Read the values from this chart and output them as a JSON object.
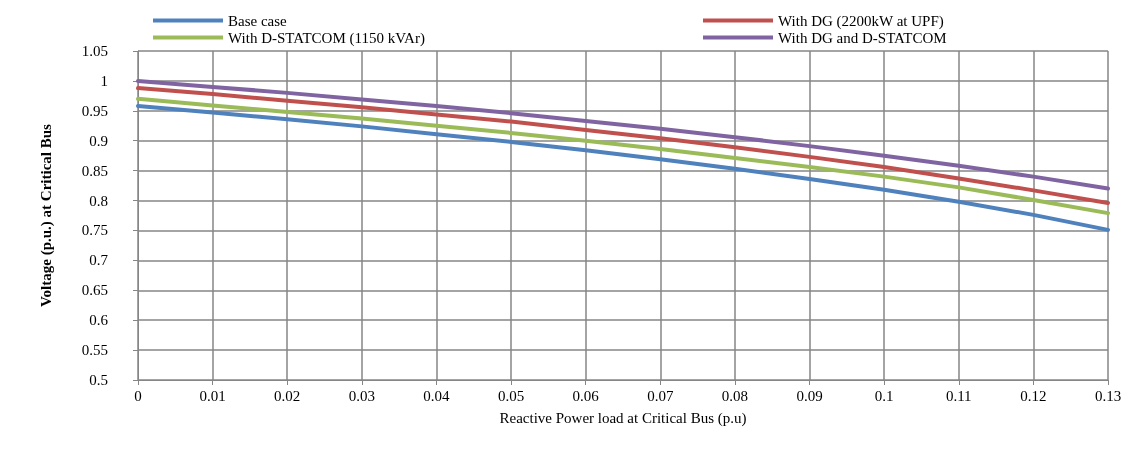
{
  "chart_data": {
    "type": "line",
    "xlabel": "Reactive Power load at Critical Bus (p.u)",
    "ylabel": "Voltage (p.u.) at Critical Bus",
    "x": [
      0,
      0.01,
      0.02,
      0.03,
      0.04,
      0.05,
      0.06,
      0.07,
      0.08,
      0.09,
      0.1,
      0.11,
      0.12,
      0.13
    ],
    "series": [
      {
        "name": "Base case",
        "color": "#4f81bd",
        "values": [
          0.958,
          0.947,
          0.936,
          0.924,
          0.911,
          0.898,
          0.884,
          0.869,
          0.853,
          0.836,
          0.818,
          0.798,
          0.776,
          0.751
        ]
      },
      {
        "name": "With DG (2200kW at UPF)",
        "color": "#c0504d",
        "values": [
          0.988,
          0.978,
          0.967,
          0.956,
          0.944,
          0.932,
          0.918,
          0.904,
          0.889,
          0.873,
          0.856,
          0.837,
          0.817,
          0.796
        ]
      },
      {
        "name": "With D-STATCOM (1150 kVAr)",
        "color": "#9bbb59",
        "values": [
          0.97,
          0.959,
          0.948,
          0.937,
          0.925,
          0.913,
          0.9,
          0.886,
          0.871,
          0.856,
          0.84,
          0.822,
          0.801,
          0.779
        ]
      },
      {
        "name": "With DG and D-STATCOM",
        "color": "#8064a2",
        "values": [
          1.0,
          0.99,
          0.98,
          0.969,
          0.958,
          0.946,
          0.933,
          0.92,
          0.906,
          0.891,
          0.875,
          0.858,
          0.84,
          0.82
        ]
      }
    ],
    "xlim": [
      0,
      0.13
    ],
    "xticks": [
      0,
      0.01,
      0.02,
      0.03,
      0.04,
      0.05,
      0.06,
      0.07,
      0.08,
      0.09,
      0.1,
      0.11,
      0.12,
      0.13
    ],
    "ylim": [
      0.5,
      1.05
    ],
    "yticks": [
      0.5,
      0.55,
      0.6,
      0.65,
      0.7,
      0.75,
      0.8,
      0.85,
      0.9,
      0.95,
      1,
      1.05
    ],
    "grid": true,
    "legend": "top",
    "marker": "none",
    "line_style": "solid"
  }
}
